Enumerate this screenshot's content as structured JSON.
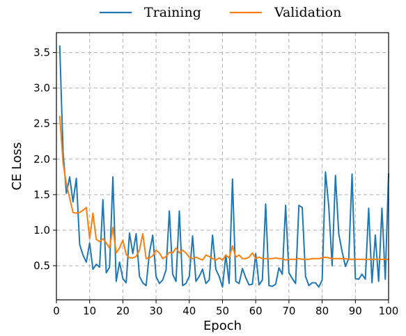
{
  "chart_data": {
    "type": "line",
    "xlabel": "Epoch",
    "ylabel": "CE Loss",
    "xlim": [
      0,
      100
    ],
    "ylim": [
      0.02,
      3.78
    ],
    "xticks": [
      0,
      10,
      20,
      30,
      40,
      50,
      60,
      70,
      80,
      90,
      100
    ],
    "yticks": [
      0.5,
      1.0,
      1.5,
      2.0,
      2.5,
      3.0,
      3.5
    ],
    "grid": true,
    "legend_position": "top-center",
    "series": [
      {
        "name": "Training",
        "color": "#1f77b4",
        "x": [
          1,
          2,
          3,
          4,
          5,
          6,
          7,
          8,
          9,
          10,
          11,
          12,
          13,
          14,
          15,
          16,
          17,
          18,
          19,
          20,
          21,
          22,
          23,
          24,
          25,
          26,
          27,
          28,
          29,
          30,
          31,
          32,
          33,
          34,
          35,
          36,
          37,
          38,
          39,
          40,
          41,
          42,
          43,
          44,
          45,
          46,
          47,
          48,
          49,
          50,
          51,
          52,
          53,
          54,
          55,
          56,
          57,
          58,
          59,
          60,
          61,
          62,
          63,
          64,
          65,
          66,
          67,
          68,
          69,
          70,
          71,
          72,
          73,
          74,
          75,
          76,
          77,
          78,
          79,
          80,
          81,
          82,
          83,
          84,
          85,
          86,
          87,
          88,
          89,
          90,
          91,
          92,
          93,
          94,
          95,
          96,
          97,
          98,
          99,
          100
        ],
        "values": [
          3.6,
          2.1,
          1.52,
          1.75,
          1.4,
          1.73,
          0.8,
          0.65,
          0.55,
          0.82,
          0.45,
          0.52,
          0.48,
          1.43,
          0.4,
          0.48,
          1.75,
          0.28,
          0.55,
          0.32,
          0.26,
          0.96,
          0.67,
          0.95,
          0.35,
          0.26,
          0.22,
          0.68,
          0.93,
          0.35,
          0.25,
          0.3,
          0.44,
          1.27,
          0.38,
          0.28,
          1.27,
          0.22,
          0.25,
          0.35,
          0.92,
          0.28,
          0.35,
          0.45,
          0.25,
          0.3,
          0.93,
          0.45,
          0.35,
          0.2,
          0.65,
          0.25,
          1.72,
          0.28,
          0.25,
          0.46,
          0.33,
          0.23,
          0.24,
          0.67,
          0.23,
          0.3,
          1.37,
          0.22,
          0.21,
          0.24,
          0.47,
          0.38,
          1.35,
          0.4,
          0.32,
          0.25,
          1.35,
          1.32,
          0.35,
          0.22,
          0.26,
          0.26,
          0.2,
          0.3,
          1.82,
          1.33,
          0.5,
          1.77,
          0.95,
          0.7,
          0.49,
          0.6,
          1.79,
          0.32,
          0.31,
          0.38,
          0.31,
          1.31,
          0.26,
          0.93,
          0.28,
          1.31,
          0.31,
          1.8
        ]
      },
      {
        "name": "Validation",
        "color": "#ff7f0e",
        "x": [
          1,
          2,
          3,
          4,
          5,
          6,
          7,
          8,
          9,
          10,
          11,
          12,
          13,
          14,
          15,
          16,
          17,
          18,
          19,
          20,
          21,
          22,
          23,
          24,
          25,
          26,
          27,
          28,
          29,
          30,
          31,
          32,
          33,
          34,
          35,
          36,
          37,
          38,
          39,
          40,
          41,
          42,
          43,
          44,
          45,
          46,
          47,
          48,
          49,
          50,
          51,
          52,
          53,
          54,
          55,
          56,
          57,
          58,
          59,
          60,
          61,
          62,
          63,
          64,
          65,
          66,
          67,
          68,
          69,
          70,
          71,
          72,
          73,
          74,
          75,
          76,
          77,
          78,
          79,
          80,
          81,
          82,
          83,
          84,
          85,
          86,
          87,
          88,
          89,
          90,
          91,
          92,
          93,
          94,
          95,
          96,
          97,
          98,
          99,
          100
        ],
        "values": [
          2.61,
          1.95,
          1.65,
          1.45,
          1.25,
          1.24,
          1.25,
          1.28,
          1.32,
          0.88,
          1.24,
          0.87,
          0.84,
          0.88,
          0.82,
          0.75,
          1.04,
          0.68,
          0.75,
          0.86,
          0.66,
          0.61,
          0.61,
          0.63,
          0.72,
          0.95,
          0.6,
          0.61,
          0.64,
          0.72,
          0.68,
          0.6,
          0.63,
          0.69,
          0.68,
          0.75,
          0.68,
          0.72,
          0.68,
          0.62,
          0.6,
          0.62,
          0.6,
          0.58,
          0.65,
          0.63,
          0.6,
          0.58,
          0.61,
          0.58,
          0.65,
          0.61,
          0.78,
          0.62,
          0.65,
          0.6,
          0.6,
          0.62,
          0.68,
          0.6,
          0.62,
          0.6,
          0.6,
          0.6,
          0.6,
          0.61,
          0.6,
          0.6,
          0.58,
          0.59,
          0.59,
          0.59,
          0.6,
          0.59,
          0.59,
          0.59,
          0.6,
          0.6,
          0.6,
          0.61,
          0.62,
          0.61,
          0.6,
          0.6,
          0.6,
          0.6,
          0.6,
          0.59,
          0.59,
          0.59,
          0.59,
          0.59,
          0.59,
          0.59,
          0.59,
          0.59,
          0.59,
          0.59,
          0.59,
          0.59
        ]
      }
    ]
  }
}
